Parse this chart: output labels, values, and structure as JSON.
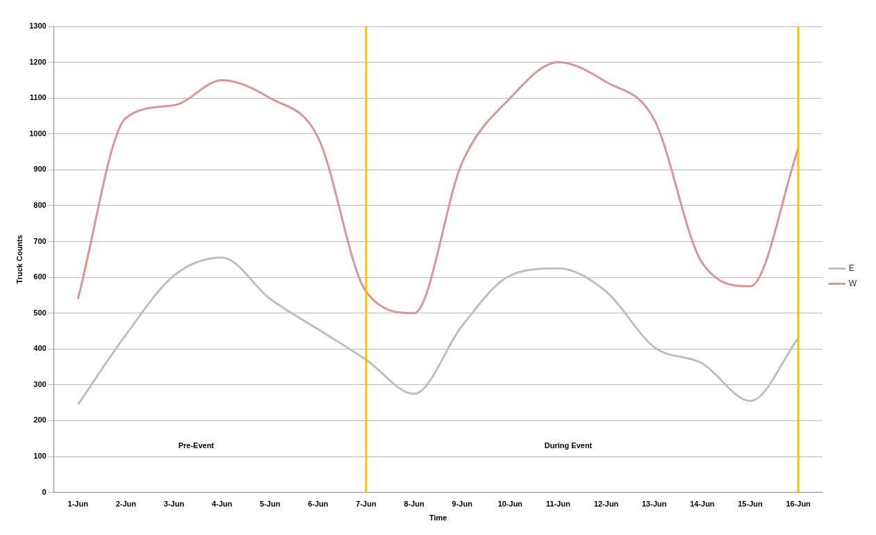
{
  "chart_data": {
    "type": "line",
    "xlabel": "Time",
    "ylabel": "Truck Counts",
    "categories": [
      "1-Jun",
      "2-Jun",
      "3-Jun",
      "4-Jun",
      "5-Jun",
      "6-Jun",
      "7-Jun",
      "8-Jun",
      "9-Jun",
      "10-Jun",
      "11-Jun",
      "12-Jun",
      "13-Jun",
      "14-Jun",
      "15-Jun",
      "16-Jun"
    ],
    "series": [
      {
        "name": "E",
        "color": "#bfbfbf",
        "values": [
          245,
          440,
          605,
          655,
          540,
          455,
          370,
          275,
          465,
          605,
          625,
          560,
          405,
          360,
          255,
          430
        ]
      },
      {
        "name": "W",
        "color": "#d99694",
        "values": [
          540,
          1045,
          1080,
          1150,
          1100,
          990,
          560,
          500,
          920,
          1100,
          1200,
          1145,
          1040,
          640,
          575,
          960
        ]
      }
    ],
    "ylim": [
      0,
      1300
    ],
    "yticks": [
      0,
      100,
      200,
      300,
      400,
      500,
      600,
      700,
      800,
      900,
      1000,
      1100,
      1200,
      1300
    ],
    "ref_lines": [
      {
        "axis": "x",
        "value": "7-Jun",
        "color": "#ffc000"
      },
      {
        "axis": "x",
        "value": "16-Jun",
        "color": "#ffc000"
      }
    ],
    "annotations": [
      "Pre-Event",
      "During Event"
    ],
    "grid": "y",
    "legend": "right",
    "marker": "none",
    "line_style": "solid"
  }
}
